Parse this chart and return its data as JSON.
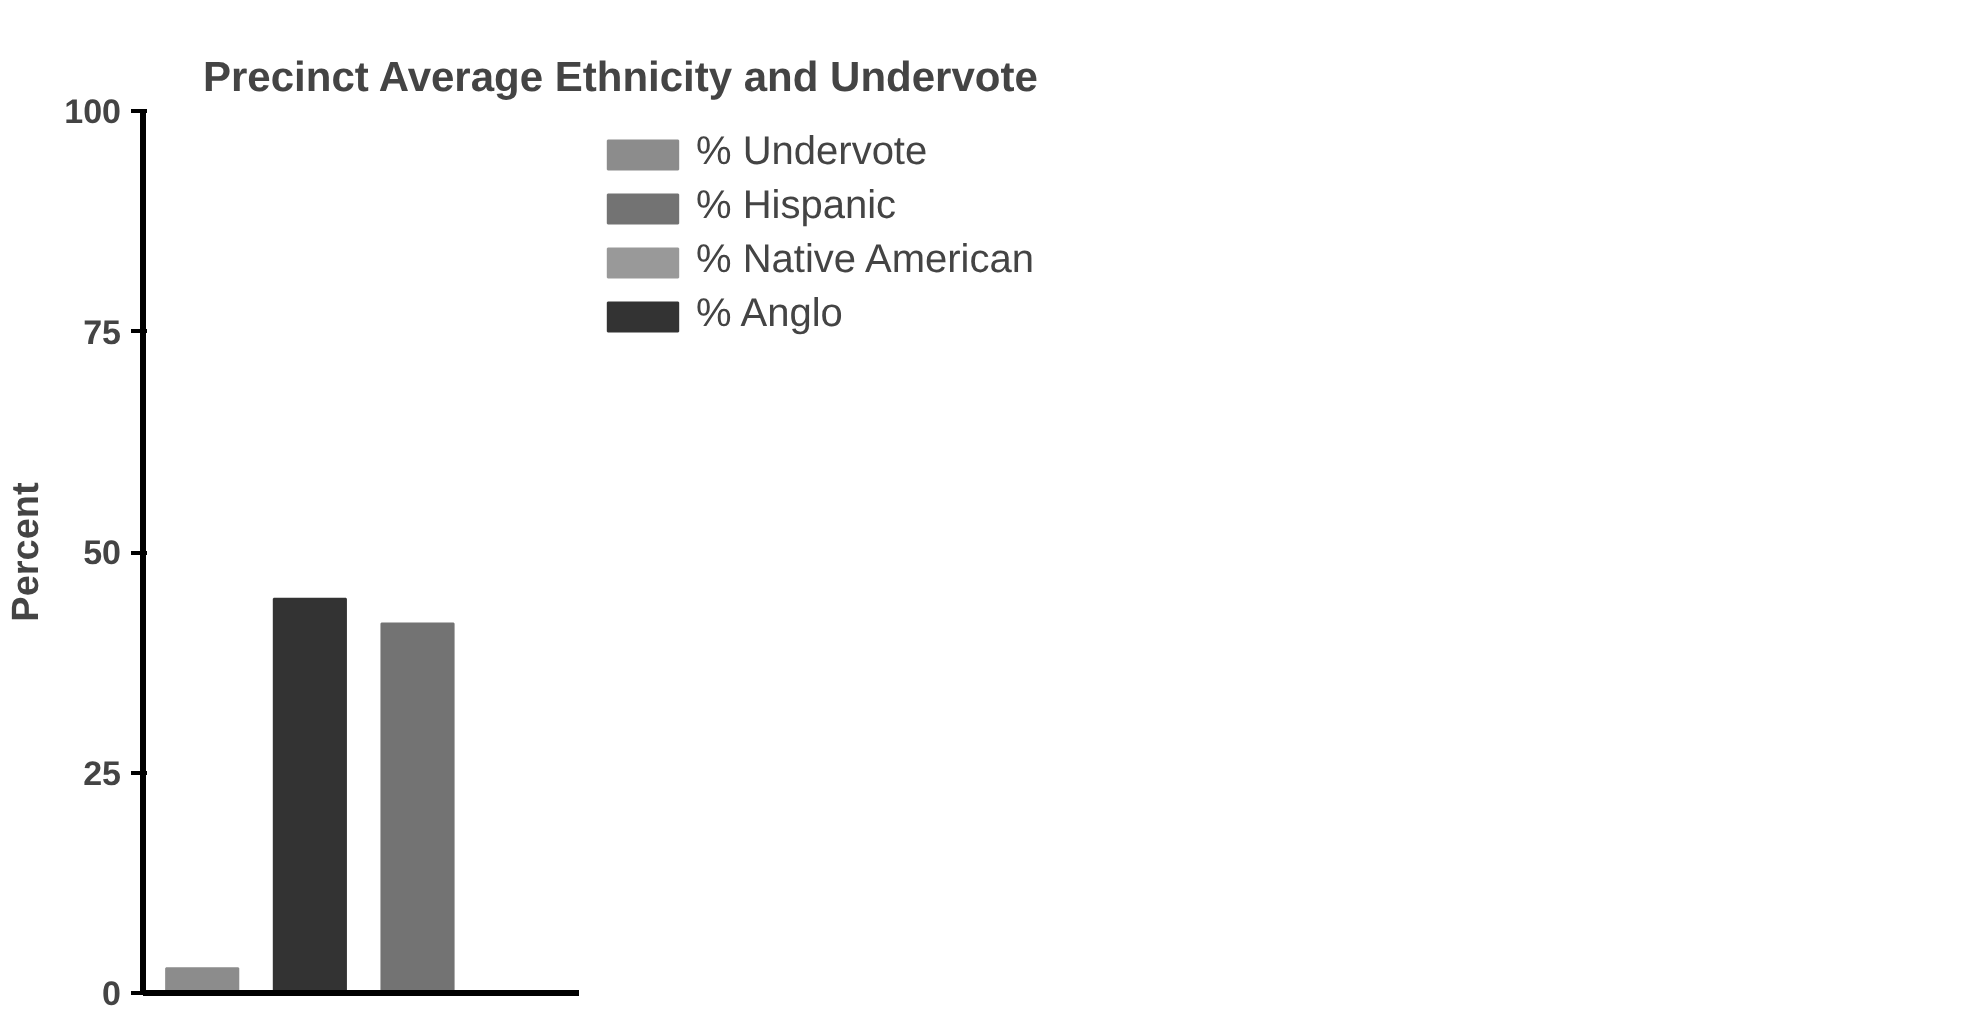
{
  "chart_data": {
    "type": "bar",
    "title": "Precinct Average Ethnicity and Undervote",
    "ylabel": "Percent",
    "categories": [
      null,
      null,
      null,
      null
    ],
    "series": [
      {
        "name": "% Undervote",
        "color": "#8c8c8c",
        "values": [
          2.8,
          null,
          null,
          null
        ]
      },
      {
        "name": "% Hispanic",
        "color": "#737373",
        "values": [
          null,
          null,
          41.9,
          null
        ]
      },
      {
        "name": "% Native American",
        "color": "#999999",
        "values": [
          null,
          null,
          null,
          0
        ]
      },
      {
        "name": "% Anglo",
        "color": "#333333",
        "values": [
          null,
          44.7,
          null,
          null
        ]
      }
    ],
    "ylim": [
      0,
      100
    ],
    "yticks": [
      0,
      25,
      50,
      75,
      100
    ],
    "grid": false,
    "legend": "top right",
    "tick_labels": "y"
  }
}
